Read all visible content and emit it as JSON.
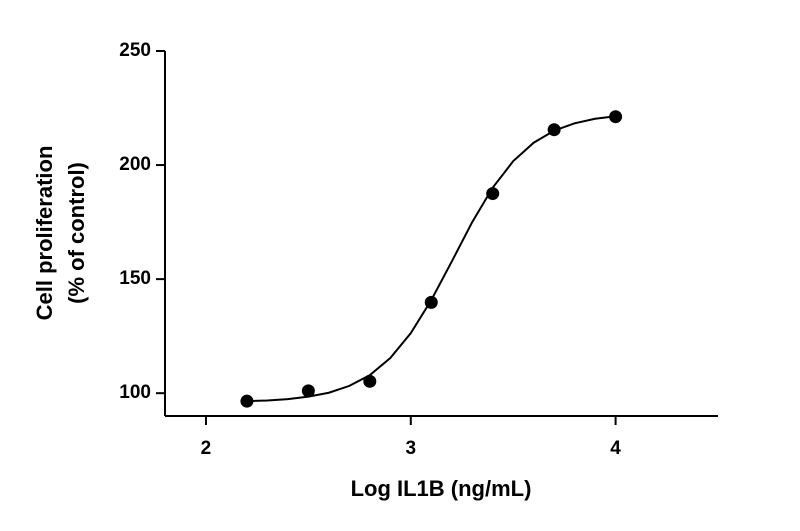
{
  "chart_data": {
    "type": "scatter",
    "x_label": "Log IL1B (ng/mL)",
    "y_label": [
      "Cell proliferation",
      "(% of control)"
    ],
    "x": [
      2.2,
      2.5,
      2.8,
      3.1,
      3.4,
      3.7,
      4.0
    ],
    "values": [
      96.5,
      101,
      105.2,
      139.8,
      187.5,
      215.5,
      221.2
    ],
    "color": "#000000",
    "curve": {
      "x": [
        2.2,
        2.3,
        2.4,
        2.5,
        2.6,
        2.7,
        2.8,
        2.9,
        3.0,
        3.1,
        3.2,
        3.3,
        3.4,
        3.5,
        3.6,
        3.7,
        3.8,
        3.9,
        4.0
      ],
      "values": [
        96.5,
        96.8,
        97.4,
        98.5,
        100.2,
        103.2,
        107.9,
        115.4,
        126.3,
        140.8,
        157.7,
        175.0,
        190.1,
        201.7,
        209.8,
        215.1,
        218.3,
        220.3,
        221.4
      ]
    },
    "xlim": [
      1.8,
      4.5
    ],
    "ylim": [
      90,
      250
    ],
    "xticks": [
      2,
      3,
      4
    ],
    "yticks": [
      100,
      150,
      200,
      250
    ]
  }
}
